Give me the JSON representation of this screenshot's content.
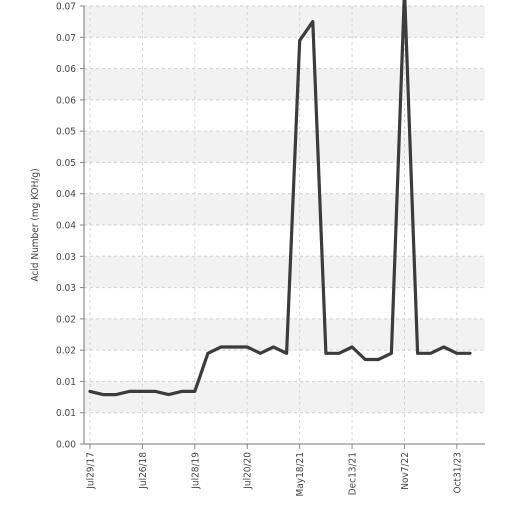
{
  "chart_data": {
    "type": "line",
    "ylabel": "Acid Number (mg KOH/g)",
    "y_tick_labels": [
      "0.00",
      "0.01",
      "0.01",
      "0.02",
      "0.02",
      "0.03",
      "0.03",
      "0.04",
      "0.04",
      "0.05",
      "0.05",
      "0.06",
      "0.06",
      "0.07",
      "0.07"
    ],
    "ylim": [
      0.0,
      0.07
    ],
    "x_tick_labels": [
      "Jul29/17",
      "Jul26/18",
      "Jul28/19",
      "Jul20/20",
      "May18/21",
      "Dec13/21",
      "Nov7/22",
      "Oct31/23"
    ],
    "x_tick_indices": [
      0,
      4,
      8,
      12,
      16,
      20,
      24,
      28
    ],
    "series": [
      {
        "values": [
          0.0084,
          0.0079,
          0.0079,
          0.0084,
          0.0084,
          0.0084,
          0.0079,
          0.0084,
          0.0084,
          0.0145,
          0.0155,
          0.0155,
          0.0155,
          0.0145,
          0.0155,
          0.0145,
          0.0645,
          0.0675,
          0.0145,
          0.0145,
          0.0155,
          0.0135,
          0.0135,
          0.0145,
          0.0725,
          0.0145,
          0.0145,
          0.0155,
          0.0145,
          0.0145
        ]
      }
    ],
    "grid": true,
    "line_color": "#3c3c3c"
  }
}
